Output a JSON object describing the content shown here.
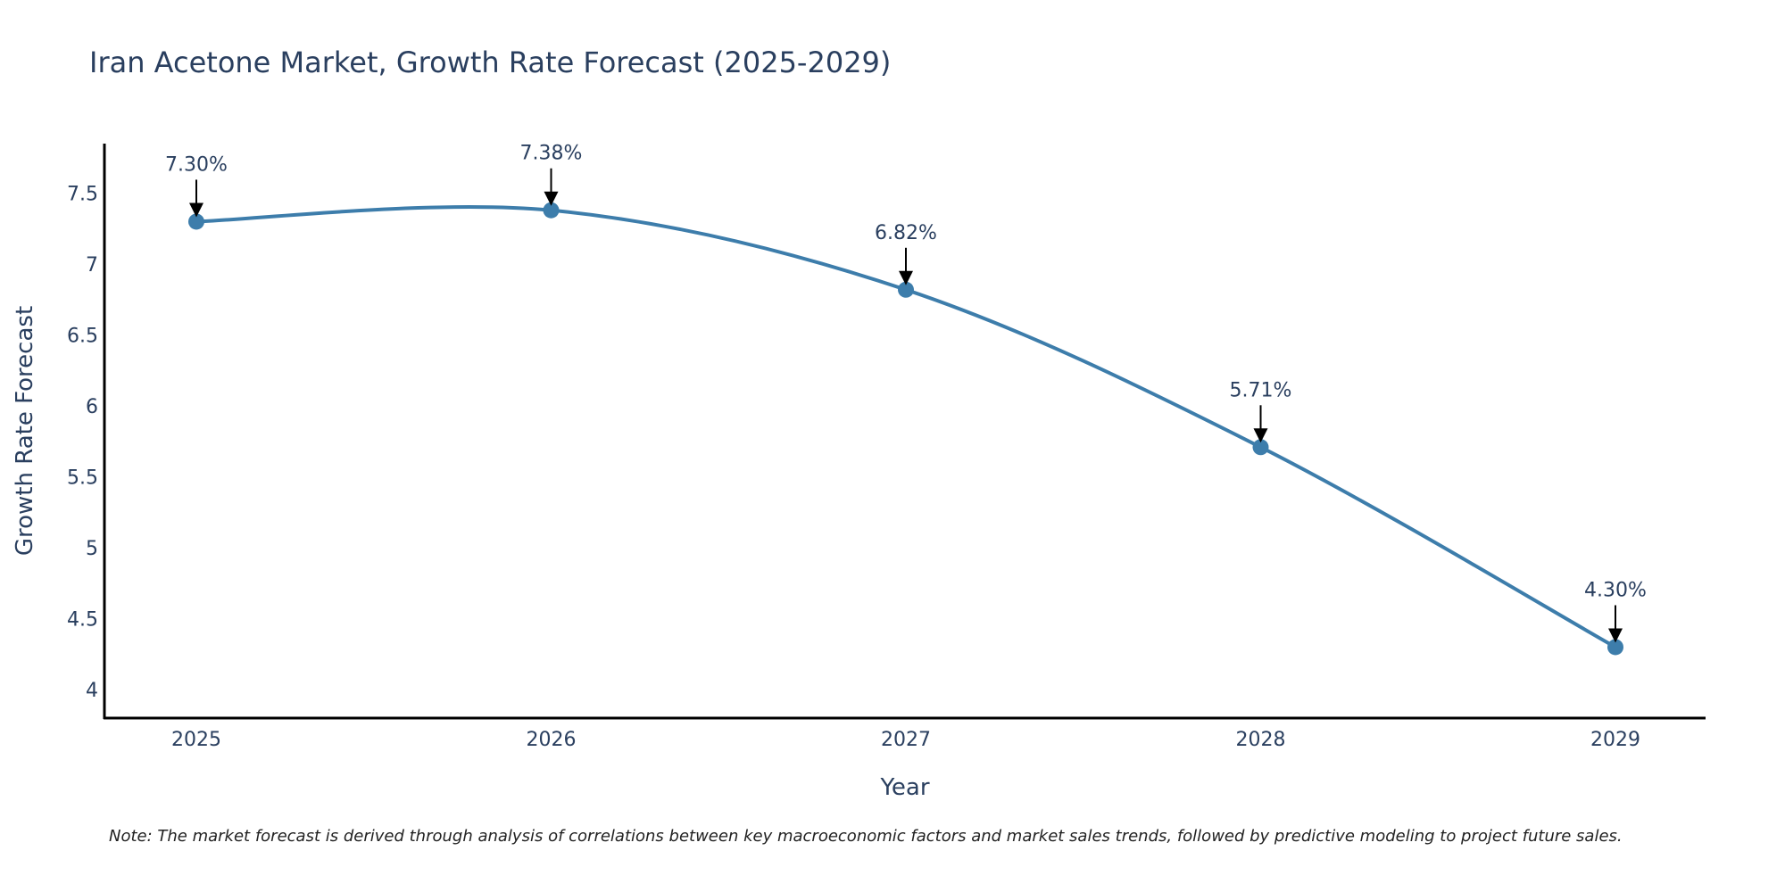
{
  "chart_data": {
    "type": "line",
    "title": "Iran Acetone Market, Growth Rate Forecast (2025-2029)",
    "xlabel": "Year",
    "ylabel": "Growth Rate Forecast",
    "categories": [
      "2025",
      "2026",
      "2027",
      "2028",
      "2029"
    ],
    "series": [
      {
        "name": "Growth Rate Forecast",
        "values": [
          7.3,
          7.38,
          6.82,
          5.71,
          4.3
        ],
        "labels": [
          "7.30%",
          "7.38%",
          "6.82%",
          "5.71%",
          "4.30%"
        ],
        "color": "#3d7dab"
      }
    ],
    "ylim": [
      3.8,
      7.85
    ],
    "yticks": [
      4,
      4.5,
      5,
      5.5,
      6,
      6.5,
      7,
      7.5
    ],
    "ytick_labels": [
      "4",
      "4.5",
      "5",
      "5.5",
      "6",
      "6.5",
      "7",
      "7.5"
    ],
    "grid": false,
    "line_shape": "spline",
    "annotation_arrows": true
  },
  "note": "Note: The market forecast is derived through analysis of correlations between key macroeconomic factors and market sales trends, followed by predictive modeling to project future sales.",
  "colors": {
    "line": "#3d7dab",
    "axis": "#000000",
    "text": "#2a3f5f"
  }
}
